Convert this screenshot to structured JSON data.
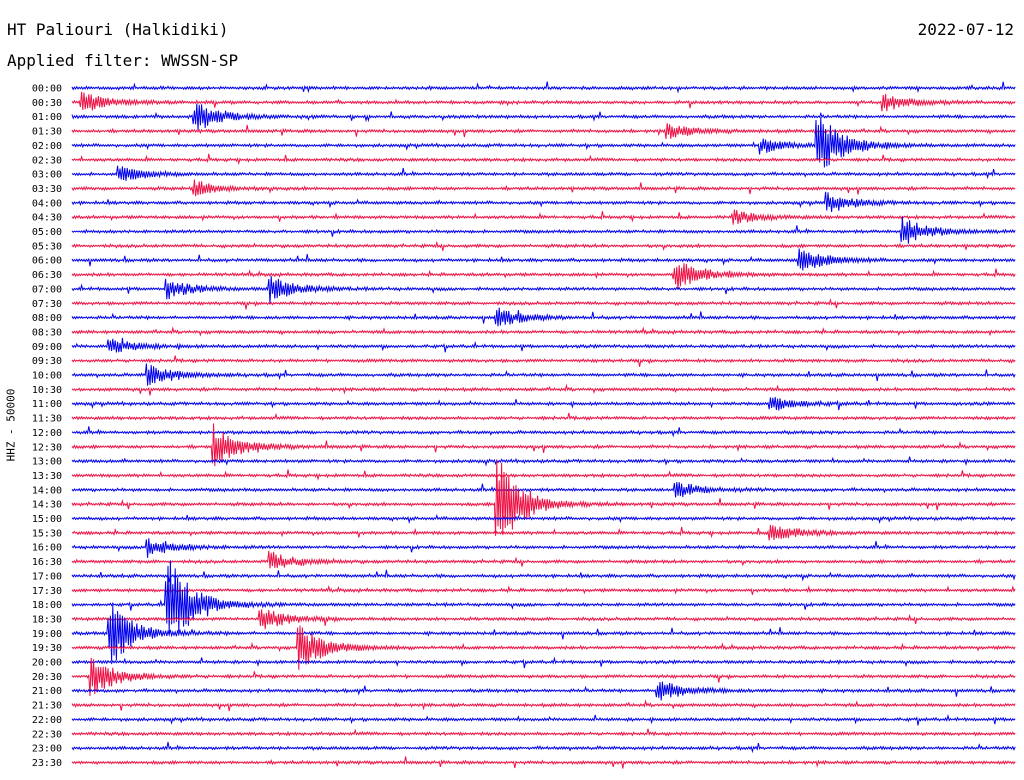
{
  "header": {
    "station": "HT Paliouri (Halkidiki)",
    "date": "2022-07-12",
    "filter": "Applied filter: WWSSN-SP",
    "channel": "HHZ - 50000"
  },
  "colors": {
    "blue": "#0000ee",
    "red": "#ee1144"
  },
  "chart_data": {
    "type": "line",
    "title": "HT Paliouri (Halkidiki)",
    "subtitle": "Applied filter: WWSSN-SP",
    "ylabel": "HHZ - 50000",
    "xlabel": "",
    "grid": false,
    "legend": "none",
    "rows": [
      "00:00",
      "00:30",
      "01:00",
      "01:30",
      "02:00",
      "02:30",
      "03:00",
      "03:30",
      "04:00",
      "04:30",
      "05:00",
      "05:30",
      "06:00",
      "06:30",
      "07:00",
      "07:30",
      "08:00",
      "08:30",
      "09:00",
      "09:30",
      "10:00",
      "10:30",
      "11:00",
      "11:30",
      "12:00",
      "12:30",
      "13:00",
      "13:30",
      "14:00",
      "14:30",
      "15:00",
      "15:30",
      "16:00",
      "16:30",
      "17:00",
      "17:30",
      "18:00",
      "18:30",
      "19:00",
      "19:30",
      "20:00",
      "20:30",
      "21:00",
      "21:30",
      "22:00",
      "22:30",
      "23:00",
      "23:30"
    ],
    "row_colors": [
      "blue",
      "red"
    ],
    "events": [
      {
        "row": "00:30",
        "x": 0.01,
        "amplitude": 10
      },
      {
        "row": "01:00",
        "x": 0.13,
        "amplitude": 16
      },
      {
        "row": "00:30",
        "x": 0.86,
        "amplitude": 9
      },
      {
        "row": "01:30",
        "x": 0.63,
        "amplitude": 8
      },
      {
        "row": "02:00",
        "x": 0.79,
        "amplitude": 32
      },
      {
        "row": "02:00",
        "x": 0.73,
        "amplitude": 8
      },
      {
        "row": "03:00",
        "x": 0.05,
        "amplitude": 8
      },
      {
        "row": "03:30",
        "x": 0.13,
        "amplitude": 8
      },
      {
        "row": "04:00",
        "x": 0.8,
        "amplitude": 10
      },
      {
        "row": "04:30",
        "x": 0.7,
        "amplitude": 7
      },
      {
        "row": "05:00",
        "x": 0.88,
        "amplitude": 14
      },
      {
        "row": "06:00",
        "x": 0.77,
        "amplitude": 14
      },
      {
        "row": "06:30",
        "x": 0.64,
        "amplitude": 16
      },
      {
        "row": "07:00",
        "x": 0.1,
        "amplitude": 10
      },
      {
        "row": "07:00",
        "x": 0.21,
        "amplitude": 14
      },
      {
        "row": "08:00",
        "x": 0.45,
        "amplitude": 10
      },
      {
        "row": "09:00",
        "x": 0.04,
        "amplitude": 8
      },
      {
        "row": "10:00",
        "x": 0.08,
        "amplitude": 12
      },
      {
        "row": "11:00",
        "x": 0.74,
        "amplitude": 8
      },
      {
        "row": "12:30",
        "x": 0.15,
        "amplitude": 22
      },
      {
        "row": "14:30",
        "x": 0.45,
        "amplitude": 50
      },
      {
        "row": "14:00",
        "x": 0.64,
        "amplitude": 8
      },
      {
        "row": "15:30",
        "x": 0.74,
        "amplitude": 10
      },
      {
        "row": "16:00",
        "x": 0.08,
        "amplitude": 10
      },
      {
        "row": "16:30",
        "x": 0.21,
        "amplitude": 10
      },
      {
        "row": "18:00",
        "x": 0.1,
        "amplitude": 30
      },
      {
        "row": "18:00",
        "x": 0.1,
        "amplitude": 22
      },
      {
        "row": "18:30",
        "x": 0.2,
        "amplitude": 12
      },
      {
        "row": "19:00",
        "x": 0.04,
        "amplitude": 35
      },
      {
        "row": "19:30",
        "x": 0.24,
        "amplitude": 25
      },
      {
        "row": "20:30",
        "x": 0.02,
        "amplitude": 22
      },
      {
        "row": "21:00",
        "x": 0.62,
        "amplitude": 12
      }
    ]
  }
}
